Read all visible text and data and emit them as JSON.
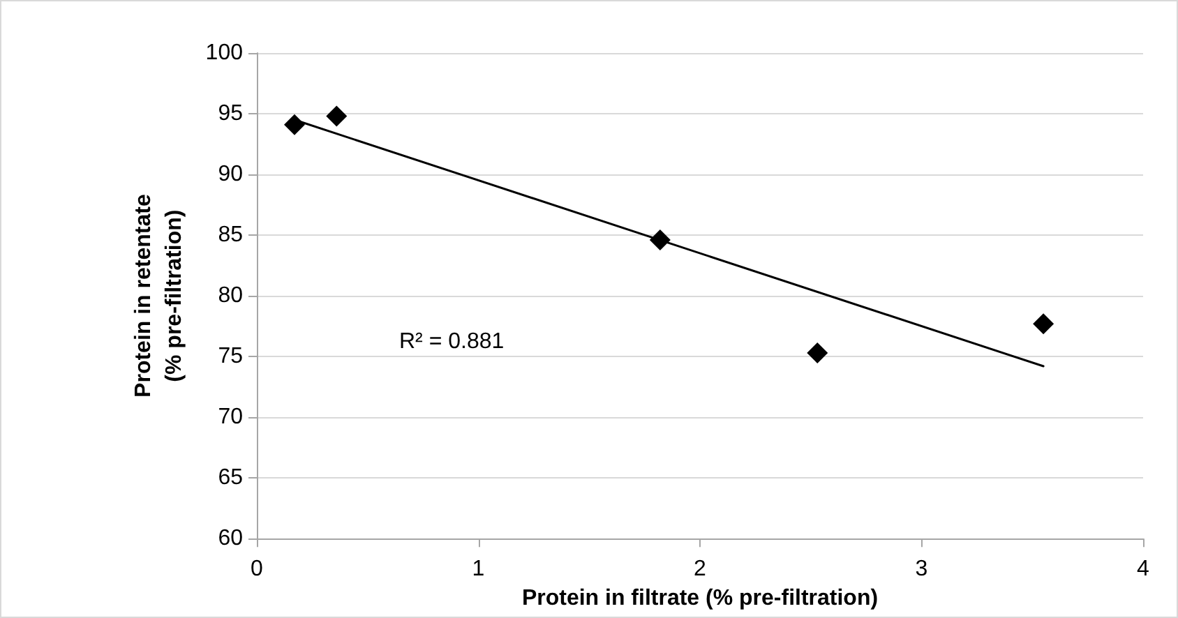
{
  "chart_data": {
    "type": "scatter",
    "xlabel": "Protein in filtrate (% pre-filtration)",
    "ylabel": "Protein in retentate\n(% pre-filtration)",
    "annotations": [
      "R² = 0.881"
    ],
    "series": [
      {
        "color": "#000000",
        "marker": "diamond",
        "x": [
          0.17,
          0.36,
          1.82,
          2.53,
          3.55
        ],
        "values": [
          94.1,
          94.8,
          84.6,
          75.3,
          77.7
        ]
      },
      {
        "type": "line",
        "color": "#000000",
        "marker": "none",
        "line_style": "solid",
        "x": [
          0.17,
          3.55
        ],
        "values": [
          94.5,
          74.2
        ]
      }
    ],
    "xlim": [
      0,
      4
    ],
    "xticks": [
      0,
      1,
      2,
      3,
      4
    ],
    "ylim": [
      60,
      100
    ],
    "yticks": [
      60,
      65,
      70,
      75,
      80,
      85,
      90,
      95,
      100
    ],
    "grid": "y"
  }
}
